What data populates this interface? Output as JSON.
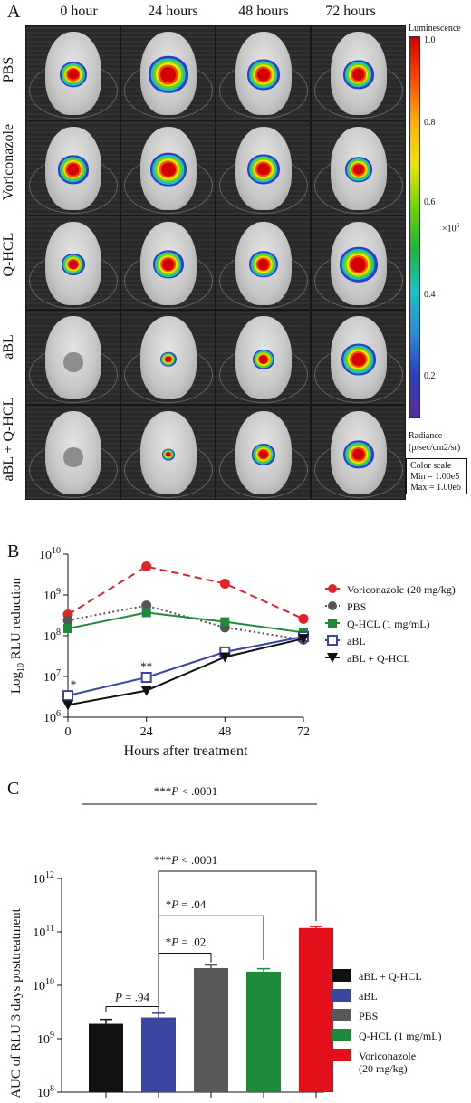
{
  "panelA": {
    "letter": "A",
    "columns": [
      "0 hour",
      "24 hours",
      "48 hours",
      "72 hours"
    ],
    "rows": [
      "PBS",
      "Voriconazole",
      "Q-HCL",
      "aBL",
      "aBL + Q-HCL"
    ],
    "colorbar": {
      "title": "Luminescence",
      "ticks": [
        "1.0",
        "0.8",
        "0.6",
        "0.4",
        "0.2"
      ],
      "multiplier": "×10",
      "multiplier_exp": "6",
      "radiance_label": "Radiance",
      "radiance_units": "(p/sec/cm2/sr)",
      "colors": [
        "#d40000",
        "#ff4a00",
        "#ffb000",
        "#e8e800",
        "#74d400",
        "#1ab53a",
        "#19c2c2",
        "#2a8ad8",
        "#2c40c0",
        "#5a2aa0"
      ]
    },
    "scale_box": {
      "title": "Color scale",
      "min": "Min = 1.00e5",
      "max": "Max = 1.00e6"
    }
  },
  "chart_data": [
    {
      "type": "line",
      "panel": "B",
      "x": [
        0,
        24,
        48,
        72
      ],
      "xlabel": "Hours after treatment",
      "ylabel_base": "Log",
      "ylabel_sub": "10",
      "ylabel_rest": " RLU reduction",
      "y_scale": "log",
      "ylim": [
        1000000,
        10000000000
      ],
      "y_ticks": [
        1000000,
        10000000,
        100000000,
        1000000000,
        10000000000
      ],
      "y_tick_base": "10",
      "y_tick_exps": [
        "6",
        "7",
        "8",
        "9",
        "10"
      ],
      "x_ticks": [
        "0",
        "24",
        "48",
        "72"
      ],
      "legend_position": "right",
      "series": [
        {
          "name": "Voriconazole (20 mg/kg)",
          "values": [
            330000000,
            5000000000,
            1900000000,
            260000000
          ],
          "color": "#e0232a",
          "marker": "circle-filled",
          "line": "dashed"
        },
        {
          "name": "PBS",
          "values": [
            240000000,
            550000000,
            160000000,
            80000000
          ],
          "color": "#555555",
          "marker": "circle-filled",
          "line": "dotted"
        },
        {
          "name": "Q-HCL (1 mg/mL)",
          "values": [
            150000000,
            370000000,
            220000000,
            120000000
          ],
          "color": "#1e8a3a",
          "marker": "square-filled",
          "line": "solid"
        },
        {
          "name": "aBL",
          "values": [
            3400000,
            9500000,
            40000000,
            95000000
          ],
          "color": "#3a46a0",
          "marker": "square-open",
          "line": "solid"
        },
        {
          "name": "aBL + Q-HCL",
          "values": [
            2000000,
            4500000,
            30000000,
            85000000
          ],
          "color": "#111111",
          "marker": "triangle-down",
          "line": "solid"
        }
      ],
      "annotations": [
        {
          "x": 0,
          "text": "*"
        },
        {
          "x": 24,
          "text": "**"
        }
      ]
    },
    {
      "type": "bar",
      "panel": "C",
      "ylabel": "AUC of RLU 3 days posttreatment",
      "y_scale": "log",
      "ylim": [
        100000000,
        1000000000000
      ],
      "y_tick_base": "10",
      "y_tick_exps": [
        "8",
        "9",
        "10",
        "11",
        "12"
      ],
      "categories": [
        "aBL + Q-HCL",
        "aBL",
        "PBS",
        "Q-HCL (1 mg/mL)",
        "Voriconazole (20 mg/kg)"
      ],
      "values": [
        1900000000,
        2500000000,
        21000000000,
        18000000000,
        118000000000
      ],
      "errors": [
        400000000,
        500000000,
        3000000000,
        2500000000,
        8000000000
      ],
      "colors": [
        "#111111",
        "#3a46a0",
        "#58575a",
        "#1e8a3a",
        "#e30f1a"
      ],
      "legend": [
        {
          "label": "aBL + Q-HCL",
          "color": "#111111"
        },
        {
          "label": "aBL",
          "color": "#3a46a0"
        },
        {
          "label": "PBS",
          "color": "#58575a"
        },
        {
          "label": "Q-HCL (1 mg/mL)",
          "color": "#1e8a3a"
        },
        {
          "label_line1": "Voriconazole",
          "label_line2": "(20 mg/kg)",
          "color": "#e30f1a"
        }
      ],
      "legend_position": "right",
      "significance": [
        {
          "from": 0,
          "to": 1,
          "prefix": "",
          "text": " = .94"
        },
        {
          "from": 1,
          "to": 2,
          "prefix": "*",
          "text": " = .02"
        },
        {
          "from": 1,
          "to": 3,
          "prefix": "*",
          "text": " = .04"
        },
        {
          "from": 1,
          "to": 4,
          "prefix": "***",
          "text": " < .0001"
        },
        {
          "from": 0,
          "to": 4,
          "prefix": "***",
          "text": " < .0001"
        }
      ],
      "p_symbol": "P"
    }
  ],
  "letters": {
    "B": "B",
    "C": "C"
  }
}
